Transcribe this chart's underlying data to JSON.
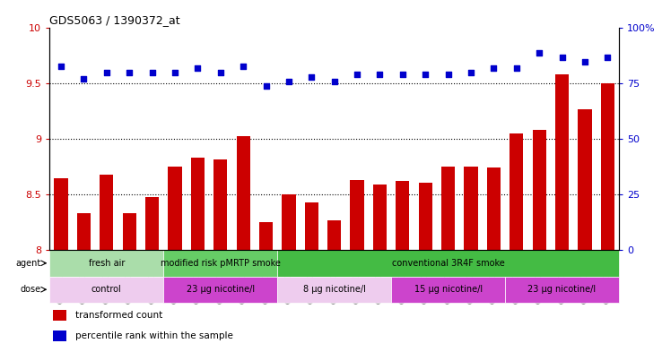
{
  "title": "GDS5063 / 1390372_at",
  "samples": [
    "GSM1217206",
    "GSM1217207",
    "GSM1217208",
    "GSM1217209",
    "GSM1217210",
    "GSM1217211",
    "GSM1217212",
    "GSM1217213",
    "GSM1217214",
    "GSM1217215",
    "GSM1217221",
    "GSM1217222",
    "GSM1217223",
    "GSM1217224",
    "GSM1217225",
    "GSM1217216",
    "GSM1217217",
    "GSM1217218",
    "GSM1217219",
    "GSM1217220",
    "GSM1217226",
    "GSM1217227",
    "GSM1217228",
    "GSM1217229",
    "GSM1217230"
  ],
  "bar_values": [
    8.65,
    8.33,
    8.68,
    8.33,
    8.48,
    8.75,
    8.83,
    8.82,
    9.03,
    8.25,
    8.5,
    8.43,
    8.27,
    8.63,
    8.59,
    8.62,
    8.61,
    8.75,
    8.75,
    8.74,
    9.05,
    9.08,
    9.58,
    9.27,
    9.5
  ],
  "dot_values": [
    83,
    77,
    80,
    80,
    80,
    80,
    82,
    80,
    83,
    74,
    76,
    78,
    76,
    79,
    79,
    79,
    79,
    79,
    80,
    82,
    82,
    89,
    87,
    85,
    87
  ],
  "bar_color": "#CC0000",
  "dot_color": "#0000CC",
  "ylim_left": [
    8.0,
    10.0
  ],
  "ylim_right": [
    0,
    100
  ],
  "yticks_left": [
    8.0,
    8.5,
    9.0,
    9.5,
    10.0
  ],
  "ytick_labels_left": [
    "8",
    "8.5",
    "9",
    "9.5",
    "10"
  ],
  "yticks_right": [
    0,
    25,
    50,
    75,
    100
  ],
  "ytick_labels_right": [
    "0",
    "25",
    "50",
    "75",
    "100%"
  ],
  "hlines": [
    8.5,
    9.0,
    9.5
  ],
  "agent_groups": [
    {
      "label": "fresh air",
      "start": 0,
      "end": 5,
      "color": "#AADDAA"
    },
    {
      "label": "modified risk pMRTP smoke",
      "start": 5,
      "end": 10,
      "color": "#66CC66"
    },
    {
      "label": "conventional 3R4F smoke",
      "start": 10,
      "end": 25,
      "color": "#44BB44"
    }
  ],
  "dose_groups": [
    {
      "label": "control",
      "start": 0,
      "end": 5,
      "color": "#EECCEE"
    },
    {
      "label": "23 μg nicotine/l",
      "start": 5,
      "end": 10,
      "color": "#CC44CC"
    },
    {
      "label": "8 μg nicotine/l",
      "start": 10,
      "end": 15,
      "color": "#EECCEE"
    },
    {
      "label": "15 μg nicotine/l",
      "start": 15,
      "end": 20,
      "color": "#CC44CC"
    },
    {
      "label": "23 μg nicotine/l",
      "start": 20,
      "end": 25,
      "color": "#CC44CC"
    }
  ],
  "agent_label": "agent",
  "dose_label": "dose",
  "legend_bar_label": "transformed count",
  "legend_dot_label": "percentile rank within the sample"
}
